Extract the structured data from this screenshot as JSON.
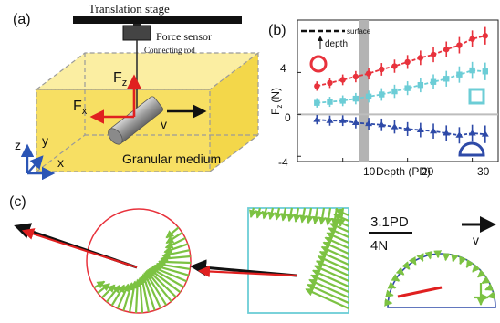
{
  "panel_a": {
    "tag": "(a)",
    "stage_label": "Translation stage",
    "sensor_label": "Force sensor",
    "rod_label": "Connecting rod",
    "fz_label": "F",
    "fz_sub": "z",
    "fx_label": "F",
    "fx_sub": "x",
    "v_label": "v",
    "medium_label": "Granular medium",
    "axis_z": "z",
    "axis_y": "y",
    "axis_x": "x",
    "colors": {
      "medium": "#f7df63",
      "force": "#e02020",
      "axis": "#2b55b5"
    }
  },
  "panel_b": {
    "tag": "(b)",
    "surface_label": "surface",
    "depth_label": "depth",
    "xlabel": "Depth (PD)",
    "ylabel": "F",
    "ylabel_sub": "z",
    "ylabel_unit": "(N)",
    "yticks": [
      "-4",
      "0",
      "4"
    ],
    "xticks": [
      "10",
      "20",
      "30"
    ]
  },
  "panel_c": {
    "tag": "(c)",
    "scale_len": "3.1PD",
    "scale_force": "4N",
    "v_label": "v"
  },
  "chart_data": {
    "type": "line",
    "xlim": [
      3,
      34
    ],
    "ylim": [
      -4.5,
      9
    ],
    "grid": false,
    "shaded_band_x": [
      12.5,
      14
    ],
    "series": [
      {
        "shape": "circle",
        "color": "#e8323c",
        "x": [
          6,
          8,
          10,
          12,
          14,
          16,
          18,
          20,
          22,
          24,
          26,
          28,
          30,
          32
        ],
        "y": [
          2.7,
          3.0,
          3.3,
          3.6,
          3.9,
          4.3,
          4.6,
          5.0,
          5.4,
          5.7,
          6.2,
          6.6,
          7.2,
          7.5
        ]
      },
      {
        "shape": "square",
        "color": "#6ccdd6",
        "x": [
          6,
          8,
          10,
          12,
          14,
          16,
          18,
          20,
          22,
          24,
          26,
          28,
          30,
          32
        ],
        "y": [
          1.1,
          1.2,
          1.3,
          1.5,
          1.7,
          1.9,
          2.2,
          2.5,
          2.8,
          3.1,
          3.4,
          3.8,
          4.2,
          4.1
        ]
      },
      {
        "shape": "semicircle",
        "color": "#2e4aa8",
        "x": [
          6,
          8,
          10,
          12,
          14,
          16,
          18,
          20,
          22,
          24,
          26,
          28,
          30,
          32
        ],
        "y": [
          -0.5,
          -0.6,
          -0.6,
          -0.8,
          -0.9,
          -1.0,
          -1.2,
          -1.4,
          -1.5,
          -1.6,
          -1.8,
          -2.0,
          -1.8,
          -1.9
        ]
      }
    ]
  }
}
